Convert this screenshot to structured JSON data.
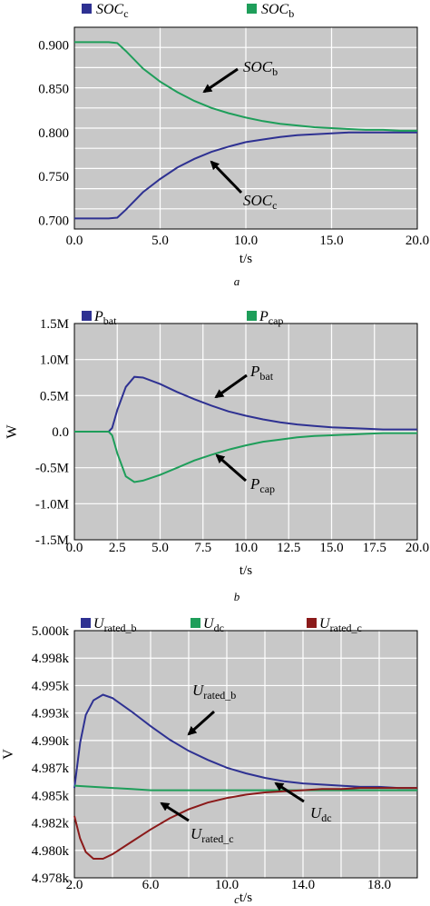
{
  "chart_data": [
    {
      "type": "line",
      "panel_label": "a",
      "xlabel": "t/s",
      "ylabel": "",
      "xlim": [
        0,
        20
      ],
      "ylim": [
        0.69,
        0.92
      ],
      "x_ticks": [
        "0.0",
        "5.0",
        "10.0",
        "15.0",
        "20.0"
      ],
      "y_ticks": [
        "0.700",
        "0.750",
        "0.800",
        "0.850",
        "0.900"
      ],
      "legend_placement": "top",
      "series": [
        {
          "name": "SOC_c",
          "legend_main": "SOC",
          "legend_sub": "c",
          "color": "#2e3192",
          "x": [
            0,
            1,
            2,
            2.5,
            3,
            4,
            5,
            6,
            7,
            8,
            9,
            10,
            11,
            12,
            13,
            14,
            15,
            16,
            17,
            18,
            19,
            20
          ],
          "y": [
            0.702,
            0.702,
            0.702,
            0.703,
            0.712,
            0.732,
            0.747,
            0.76,
            0.77,
            0.778,
            0.784,
            0.789,
            0.792,
            0.795,
            0.797,
            0.798,
            0.799,
            0.8,
            0.8,
            0.8,
            0.8,
            0.8
          ]
        },
        {
          "name": "SOC_b",
          "legend_main": "SOC",
          "legend_sub": "b",
          "color": "#1e9e5a",
          "x": [
            0,
            1,
            2,
            2.5,
            3,
            4,
            5,
            6,
            7,
            8,
            9,
            10,
            11,
            12,
            13,
            14,
            15,
            16,
            17,
            18,
            19,
            20
          ],
          "y": [
            0.903,
            0.903,
            0.903,
            0.902,
            0.893,
            0.873,
            0.858,
            0.846,
            0.836,
            0.828,
            0.822,
            0.817,
            0.813,
            0.81,
            0.808,
            0.806,
            0.805,
            0.804,
            0.803,
            0.803,
            0.802,
            0.802
          ]
        }
      ],
      "annotations": [
        {
          "main": "SOC",
          "sub": "b"
        },
        {
          "main": "SOC",
          "sub": "c"
        }
      ]
    },
    {
      "type": "line",
      "panel_label": "b",
      "xlabel": "t/s",
      "ylabel": "W",
      "xlim": [
        0,
        20
      ],
      "ylim": [
        -1.5,
        1.5
      ],
      "x_ticks": [
        "0.0",
        "2.5",
        "5.0",
        "7.5",
        "10.0",
        "12.5",
        "15.0",
        "17.5",
        "20.0"
      ],
      "y_ticks": [
        "1.5M",
        "1.0M",
        "0.5M",
        "0.0",
        "-0.5M",
        "-1.0M",
        "-1.5M"
      ],
      "legend_placement": "top",
      "series": [
        {
          "name": "P_bat",
          "legend_main": "P",
          "legend_sub": "bat",
          "color": "#2e3192",
          "x": [
            0,
            1,
            2,
            2.2,
            2.5,
            3,
            3.5,
            4,
            5,
            6,
            7,
            8,
            9,
            10,
            11,
            12,
            13,
            14,
            15,
            16,
            17,
            18,
            19,
            20
          ],
          "y": [
            0,
            0,
            0,
            0.05,
            0.3,
            0.62,
            0.76,
            0.75,
            0.66,
            0.55,
            0.45,
            0.36,
            0.28,
            0.22,
            0.17,
            0.13,
            0.1,
            0.08,
            0.06,
            0.05,
            0.04,
            0.03,
            0.03,
            0.03
          ]
        },
        {
          "name": "P_cap",
          "legend_main": "P",
          "legend_sub": "cap",
          "color": "#1e9e5a",
          "x": [
            0,
            1,
            2,
            2.2,
            2.5,
            3,
            3.5,
            4,
            5,
            6,
            7,
            8,
            9,
            10,
            11,
            12,
            13,
            14,
            15,
            16,
            17,
            18,
            19,
            20
          ],
          "y": [
            0,
            0,
            0,
            -0.05,
            -0.3,
            -0.62,
            -0.7,
            -0.68,
            -0.6,
            -0.5,
            -0.4,
            -0.32,
            -0.25,
            -0.19,
            -0.14,
            -0.11,
            -0.08,
            -0.06,
            -0.05,
            -0.04,
            -0.03,
            -0.02,
            -0.02,
            -0.02
          ]
        }
      ],
      "annotations": [
        {
          "main": "P",
          "sub": "bat"
        },
        {
          "main": "P",
          "sub": "cap"
        }
      ]
    },
    {
      "type": "line",
      "panel_label": "c",
      "xlabel": "t/s",
      "ylabel": "V",
      "xlim": [
        2,
        20
      ],
      "ylim": [
        4.978,
        5.0
      ],
      "x_ticks": [
        "2.0",
        "6.0",
        "10.0",
        "14.0",
        "18.0"
      ],
      "y_ticks": [
        "5.000k",
        "4.998k",
        "4.995k",
        "4.993k",
        "4.990k",
        "4.987k",
        "4.985k",
        "4.982k",
        "4.980k",
        "4.978k"
      ],
      "legend_placement": "top",
      "series": [
        {
          "name": "U_rated_b",
          "legend_main": "U",
          "legend_sub": "rated_b",
          "color": "#2e3192",
          "x": [
            2,
            2.3,
            2.6,
            3,
            3.5,
            4,
            5,
            6,
            7,
            8,
            9,
            10,
            11,
            12,
            13,
            14,
            15,
            16,
            17,
            18,
            19,
            20
          ],
          "y": [
            4.986,
            4.99,
            4.9925,
            4.9938,
            4.9943,
            4.994,
            4.9928,
            4.9915,
            4.9903,
            4.9893,
            4.9885,
            4.9878,
            4.9873,
            4.9869,
            4.9866,
            4.9864,
            4.9863,
            4.9862,
            4.9861,
            4.9861,
            4.986,
            4.986
          ]
        },
        {
          "name": "U_dc",
          "legend_main": "U",
          "legend_sub": "dc",
          "color": "#1e9e5a",
          "x": [
            2,
            3,
            4,
            5,
            6,
            7,
            8,
            9,
            10,
            11,
            12,
            13,
            14,
            15,
            16,
            17,
            18,
            19,
            20
          ],
          "y": [
            4.9862,
            4.9861,
            4.986,
            4.9859,
            4.9858,
            4.9858,
            4.9858,
            4.9858,
            4.9858,
            4.9858,
            4.9858,
            4.9858,
            4.9858,
            4.9858,
            4.9858,
            4.9858,
            4.9858,
            4.9858,
            4.9858
          ]
        },
        {
          "name": "U_rated_c",
          "legend_main": "U",
          "legend_sub": "rated_c",
          "color": "#8b1a1a",
          "x": [
            2,
            2.3,
            2.6,
            3,
            3.5,
            4,
            5,
            6,
            7,
            8,
            9,
            10,
            11,
            12,
            13,
            14,
            15,
            16,
            17,
            18,
            19,
            20
          ],
          "y": [
            4.9835,
            4.9815,
            4.9803,
            4.9797,
            4.9797,
            4.9801,
            4.9812,
            4.9823,
            4.9833,
            4.9841,
            4.9847,
            4.9851,
            4.9854,
            4.9856,
            4.9857,
            4.9858,
            4.9859,
            4.9859,
            4.986,
            4.986,
            4.986,
            4.986
          ]
        }
      ],
      "annotations": [
        {
          "main": "U",
          "sub": "rated_b"
        },
        {
          "main": "U",
          "sub": "dc"
        },
        {
          "main": "U",
          "sub": "rated_c"
        }
      ]
    }
  ]
}
